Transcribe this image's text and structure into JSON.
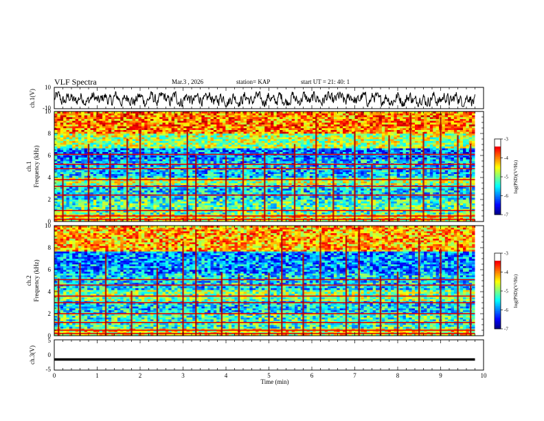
{
  "header": {
    "title": "VLF Spectra",
    "date": "Mar.3  , 2026",
    "station": "station= KAP",
    "start_ut": "start  UT  =   21: 40: 1"
  },
  "chart_data": [
    {
      "id": "ch1_waveform",
      "type": "line",
      "ylabel": "ch.1(V)",
      "ylim": [
        -10,
        10
      ],
      "yticks": [
        "10",
        "-10"
      ],
      "xlim": [
        0,
        10
      ],
      "color": "#000000",
      "description_level": "noisy trace oscillating mostly between about -7 and 5 V"
    },
    {
      "id": "ch1_spectrogram",
      "type": "heatmap",
      "ylabel": "ch.1\nFrequency  (kHz)",
      "ylim": [
        0,
        10
      ],
      "yticks": [
        "0",
        "2",
        "4",
        "6",
        "8",
        "10"
      ],
      "xlim": [
        0,
        9.8
      ],
      "colorbar": {
        "label": "log(PSD)(V²/Hz)",
        "range": [
          -7,
          -3
        ],
        "ticks": [
          "-3",
          "-4",
          "-5",
          "-6",
          "-7"
        ]
      },
      "bands": [
        {
          "from_khz": 0.0,
          "to_khz": 0.6,
          "level": -4.5
        },
        {
          "from_khz": 0.6,
          "to_khz": 2.0,
          "level": -5.2
        },
        {
          "from_khz": 2.0,
          "to_khz": 3.4,
          "level": -5.6
        },
        {
          "from_khz": 3.4,
          "to_khz": 4.0,
          "level": -4.8
        },
        {
          "from_khz": 4.0,
          "to_khz": 5.6,
          "level": -5.7
        },
        {
          "from_khz": 5.6,
          "to_khz": 6.6,
          "level": -6.0
        },
        {
          "from_khz": 6.6,
          "to_khz": 8.0,
          "level": -4.8
        },
        {
          "from_khz": 8.0,
          "to_khz": 10.0,
          "level": -4.0
        }
      ],
      "lines_khz": [
        0.2,
        0.5,
        1.0,
        2.4,
        3.2,
        3.8,
        4.8,
        5.2,
        6.1
      ],
      "spherics_min": [
        0.2,
        0.8,
        1.3,
        1.7,
        2.0,
        2.7,
        3.1,
        3.3,
        4.0,
        4.4,
        4.9,
        5.3,
        5.6,
        6.1,
        6.5,
        7.0,
        7.4,
        7.8,
        8.3,
        8.6,
        9.0,
        9.4,
        9.7
      ]
    },
    {
      "id": "ch2_spectrogram",
      "type": "heatmap",
      "ylabel": "ch.2\nFrequency  (kHz)",
      "ylim": [
        0,
        10
      ],
      "yticks": [
        "0",
        "2",
        "4",
        "6",
        "8",
        "10"
      ],
      "xlim": [
        0,
        9.8
      ],
      "colorbar": {
        "label": "log(PSD)(V²/Hz)",
        "range": [
          -7,
          -3
        ],
        "ticks": [
          "-3",
          "-4",
          "-5",
          "-6",
          "-7"
        ]
      },
      "bands": [
        {
          "from_khz": 0.0,
          "to_khz": 0.6,
          "level": -4.5
        },
        {
          "from_khz": 0.6,
          "to_khz": 2.0,
          "level": -5.3
        },
        {
          "from_khz": 2.0,
          "to_khz": 3.2,
          "level": -5.6
        },
        {
          "from_khz": 3.2,
          "to_khz": 4.2,
          "level": -5.0
        },
        {
          "from_khz": 4.2,
          "to_khz": 5.6,
          "level": -5.6
        },
        {
          "from_khz": 5.6,
          "to_khz": 7.6,
          "level": -5.9
        },
        {
          "from_khz": 7.6,
          "to_khz": 10.0,
          "level": -4.2
        }
      ],
      "lines_khz": [
        0.2,
        0.5,
        1.2,
        2.0,
        3.0,
        3.6,
        4.6,
        5.1
      ],
      "spherics_min": [
        0.1,
        0.6,
        1.2,
        1.8,
        2.4,
        3.0,
        3.3,
        3.9,
        4.3,
        5.0,
        5.3,
        5.8,
        6.2,
        6.8,
        7.1,
        7.6,
        8.0,
        8.5,
        9.0,
        9.4,
        9.7
      ]
    },
    {
      "id": "ch3_waveform",
      "type": "line",
      "ylabel": "ch.3(V)",
      "ylim": [
        -5,
        5
      ],
      "yticks": [
        "5",
        "0",
        "-5"
      ],
      "xlim": [
        0,
        10
      ],
      "xlabel": "Time  (min)",
      "xticks": [
        "0",
        "1",
        "2",
        "3",
        "4",
        "5",
        "6",
        "7",
        "8",
        "9",
        "10"
      ],
      "trace_center": -1.5,
      "trace_halfwidth": 0.4,
      "trace_end_min": 9.8,
      "color": "#000000"
    }
  ]
}
